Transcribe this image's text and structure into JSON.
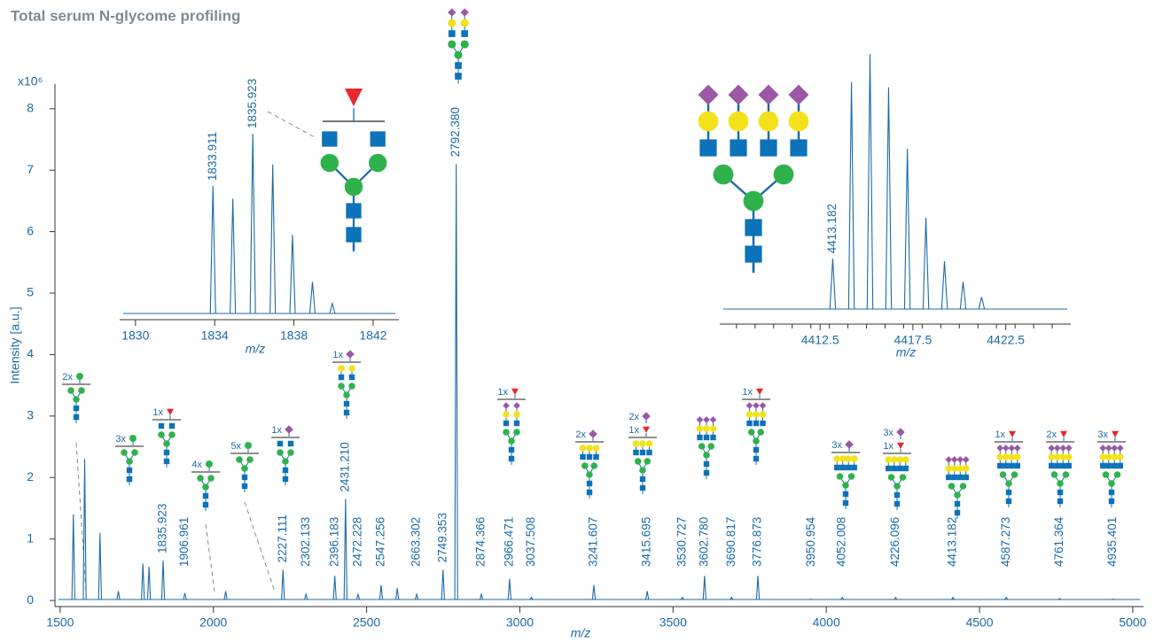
{
  "title": "Total serum N-glycome profiling",
  "glycan_labels": [
    "2x",
    "3x",
    "1x",
    "4x",
    "5x",
    "1x",
    "1x",
    "1x",
    "2x",
    "2x",
    "1x",
    "1x",
    "3x",
    "3x",
    "1x",
    "1x",
    "2x",
    "3x"
  ],
  "chart_data": [
    {
      "type": "spectrum",
      "color": "#1b6aa8",
      "xlabel": "m/z",
      "ylabel": "Intensity [a.u.]",
      "y_multiplier": "x10⁶",
      "xlim": [
        1483,
        5035
      ],
      "ylim": [
        -0.1,
        8.4
      ],
      "xticks": [
        1500,
        2000,
        2500,
        3000,
        3500,
        4000,
        4500,
        5000
      ],
      "yticks": [
        0,
        1,
        2,
        3,
        4,
        5,
        6,
        7,
        8
      ],
      "x": [
        1543,
        1580,
        1630,
        1690,
        1770,
        1790,
        1835.923,
        1906.961,
        2040,
        2227.111,
        2302.133,
        2396.183,
        2431.21,
        2472.228,
        2547.256,
        2600,
        2663.302,
        2749.353,
        2792.38,
        2874.366,
        2966.471,
        3037.508,
        3241.607,
        3415.695,
        3530.727,
        3602.78,
        3690.817,
        3776.873,
        3950.954,
        4052.008,
        4226.096,
        4413.182,
        4587.273,
        4761.364,
        4935.401
      ],
      "x_labels": [
        null,
        null,
        null,
        null,
        null,
        null,
        "1835.923",
        "1906.961",
        null,
        "2227.111",
        "2302.133",
        "2396.183",
        "2431.210",
        "2472.228",
        "2547.256",
        null,
        "2663.302",
        "2749.353",
        "2792.380",
        "2874.366",
        "2966.471",
        "3037.508",
        "3241.607",
        "3415.695",
        "3530.727",
        "3602.780",
        "3690.817",
        "3776.873",
        "3950.954",
        "4052.008",
        "4226.096",
        "4413.182",
        "4587.273",
        "4761.364",
        "4935.401"
      ],
      "values": [
        1.4,
        2.3,
        1.1,
        0.15,
        0.6,
        0.55,
        0.65,
        0.12,
        0.15,
        0.5,
        0.1,
        0.4,
        1.65,
        0.1,
        0.25,
        0.2,
        0.1,
        0.5,
        7.1,
        0.1,
        0.35,
        0.05,
        0.25,
        0.15,
        0.05,
        0.4,
        0.05,
        0.4,
        0.02,
        0.05,
        0.05,
        0.05,
        0.05,
        0.03,
        0.02
      ]
    },
    {
      "type": "spectrum",
      "color": "#1b6aa8",
      "xlabel": "m/z",
      "xlim": [
        1829.2,
        1843.3
      ],
      "ylim": [
        0,
        100
      ],
      "xticks": [
        1830,
        1834,
        1838,
        1842
      ],
      "x": [
        1833.911,
        1834.914,
        1835.923,
        1836.93,
        1837.93,
        1838.935,
        1839.94
      ],
      "x_labels": [
        "1833.911",
        null,
        "1835.923",
        null,
        null,
        null,
        null
      ],
      "values": [
        71,
        64,
        100,
        83,
        44,
        18,
        6
      ]
    },
    {
      "type": "spectrum",
      "color": "#1b6aa8",
      "xlabel": "m/z",
      "xlim": [
        4407.1,
        4426
      ],
      "ylim": [
        0,
        100
      ],
      "xticks": [
        {
          "value": 4412.5,
          "label": "4412.5"
        },
        {
          "value": 4417.5,
          "label": "4417.5"
        },
        {
          "value": 4422.5,
          "label": "4422.5"
        }
      ],
      "minor_xticks": [
        4408,
        4409,
        4410,
        4411,
        4412,
        4413,
        4414,
        4415,
        4416,
        4417,
        4418,
        4419,
        4420,
        4421,
        4422,
        4423,
        4424,
        4425
      ],
      "x": [
        4413.182,
        4414.19,
        4415.19,
        4416.19,
        4417.2,
        4418.2,
        4419.2,
        4420.2,
        4421.2
      ],
      "x_labels": [
        "4413.182",
        null,
        null,
        null,
        null,
        null,
        null,
        null,
        null
      ],
      "values": [
        20,
        89,
        100,
        87,
        63,
        36,
        19,
        11,
        5
      ]
    }
  ]
}
